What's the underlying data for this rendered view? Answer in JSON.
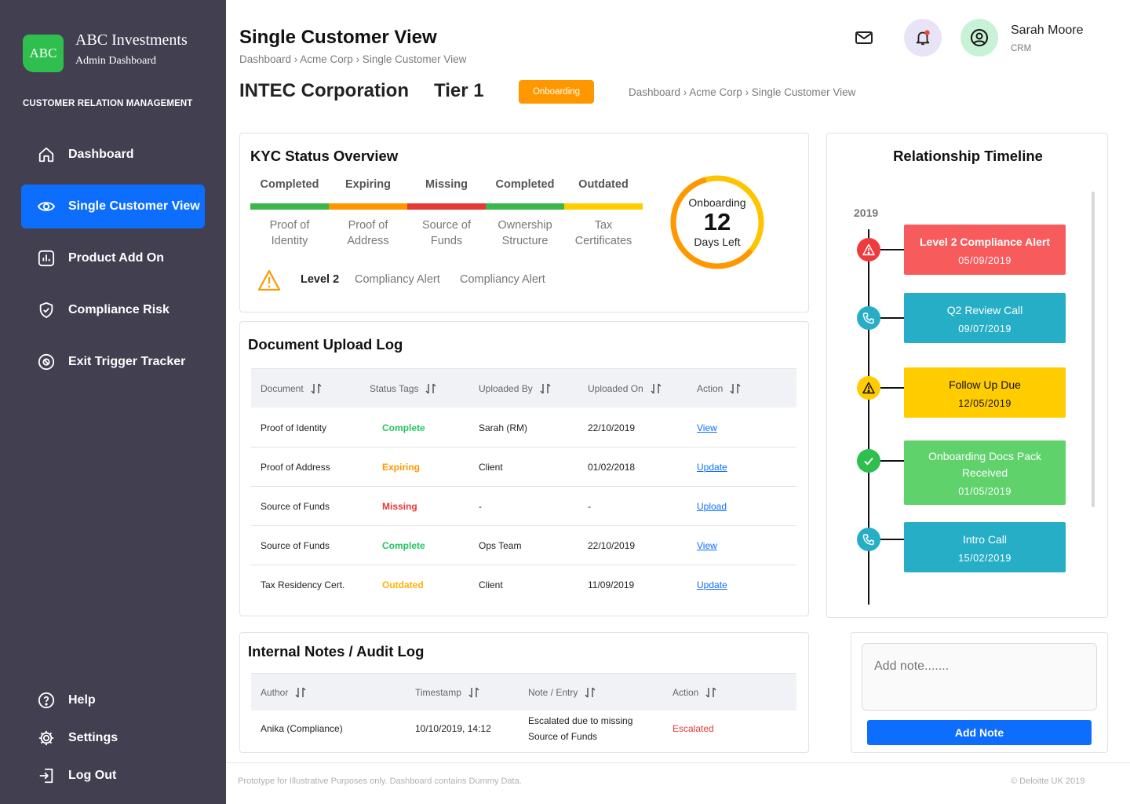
{
  "brand": {
    "logo": "ABC",
    "name": "ABC Investments",
    "subtitle": "Admin Dashboard"
  },
  "sidebar": {
    "section_label": "CUSTOMER RELATION MANAGEMENT",
    "items": [
      {
        "label": "Dashboard",
        "icon": "home-icon"
      },
      {
        "label": "Single Customer View",
        "icon": "eye-icon",
        "active": true
      },
      {
        "label": "Product Add On",
        "icon": "bar-chart-icon"
      },
      {
        "label": "Compliance Risk",
        "icon": "shield-check-icon"
      },
      {
        "label": "Exit Trigger Tracker",
        "icon": "exit-tracker-icon"
      }
    ],
    "bottom_items": [
      {
        "label": "Help",
        "icon": "help-icon"
      },
      {
        "label": "Settings",
        "icon": "gear-icon"
      },
      {
        "label": "Log Out",
        "icon": "logout-icon"
      }
    ]
  },
  "header": {
    "title": "Single Customer View",
    "breadcrumb": "Dashboard › Acme Corp › Single Customer View",
    "company": "INTEC Corporation",
    "tier": "Tier 1",
    "status": "Onboarding",
    "breadcrumb_secondary": "Dashboard › Acme Corp › Single Customer View"
  },
  "user": {
    "name": "Sarah Moore",
    "role": "CRM"
  },
  "kyc": {
    "title": "KYC Status Overview",
    "items": [
      {
        "status": "Completed",
        "label_line1": "Proof of",
        "label_line2": "Identity",
        "color": "#3cb54a"
      },
      {
        "status": "Expiring",
        "label_line1": "Proof of",
        "label_line2": "Address",
        "color": "#ff9800"
      },
      {
        "status": "Missing",
        "label_line1": "Source of",
        "label_line2": "Funds",
        "color": "#e53935"
      },
      {
        "status": "Completed",
        "label_line1": "Ownership",
        "label_line2": "Structure",
        "color": "#3cb54a"
      },
      {
        "status": "Outdated",
        "label_line1": "Tax",
        "label_line2": "Certificates",
        "color": "#ffcc00"
      }
    ],
    "alert": {
      "level": "Level 2",
      "text1": "Compliancy Alert",
      "text2": "Compliancy Alert"
    },
    "onboarding": {
      "top": "Onboarding",
      "days": "12",
      "bottom": "Days Left"
    }
  },
  "documents": {
    "title": "Document Upload Log",
    "columns": [
      "Document",
      "Status Tags",
      "Uploaded By",
      "Uploaded On",
      "Action"
    ],
    "rows": [
      {
        "document": "Proof of Identity",
        "status": "Complete",
        "by": "Sarah (RM)",
        "on": "22/10/2019",
        "action": "View"
      },
      {
        "document": "Proof of Address",
        "status": "Expiring",
        "by": "Client",
        "on": "01/02/2018",
        "action": "Update"
      },
      {
        "document": "Source of Funds",
        "status": "Missing",
        "by": "-",
        "on": "-",
        "action": "Upload"
      },
      {
        "document": "Source of Funds",
        "status": "Complete",
        "by": "Ops Team",
        "on": "22/10/2019",
        "action": "View"
      },
      {
        "document": "Tax Residency Cert.",
        "status": "Outdated",
        "by": "Client",
        "on": "11/09/2019",
        "action": "Update"
      }
    ]
  },
  "notes": {
    "title": "Internal Notes / Audit Log",
    "columns": [
      "Author",
      "Timestamp",
      "Note / Entry",
      "Action"
    ],
    "rows": [
      {
        "author": "Anika (Compliance)",
        "timestamp": "10/10/2019, 14:12",
        "note_line1": "Escalated due to missing",
        "note_line2": "Source of Funds",
        "action": "Escalated"
      }
    ],
    "input_placeholder": "Add note.......",
    "add_button": "Add Note"
  },
  "timeline": {
    "title": "Relationship Timeline",
    "year": "2019",
    "events": [
      {
        "title": "Level 2 Compliance Alert",
        "date": "05/09/2019",
        "color": "#f75b5b",
        "icon": "warning-icon"
      },
      {
        "title": "Q2 Review Call",
        "date": "09/07/2019",
        "color": "#25aec6",
        "icon": "phone-icon"
      },
      {
        "title": "Follow Up Due",
        "date": "12/05/2019",
        "color": "#ffcc00",
        "icon": "warning-icon"
      },
      {
        "title": "Onboarding Docs Pack Received",
        "date": "01/05/2019",
        "color": "#5fd26c",
        "icon": "check-icon"
      },
      {
        "title": "Intro Call",
        "date": "15/02/2019",
        "color": "#25aec6",
        "icon": "phone-icon"
      }
    ]
  },
  "footer": {
    "left": "Prototype for Illustrative Purposes only. Dashboard contains Dummy Data.",
    "right": "© Deloitte UK 2019"
  }
}
